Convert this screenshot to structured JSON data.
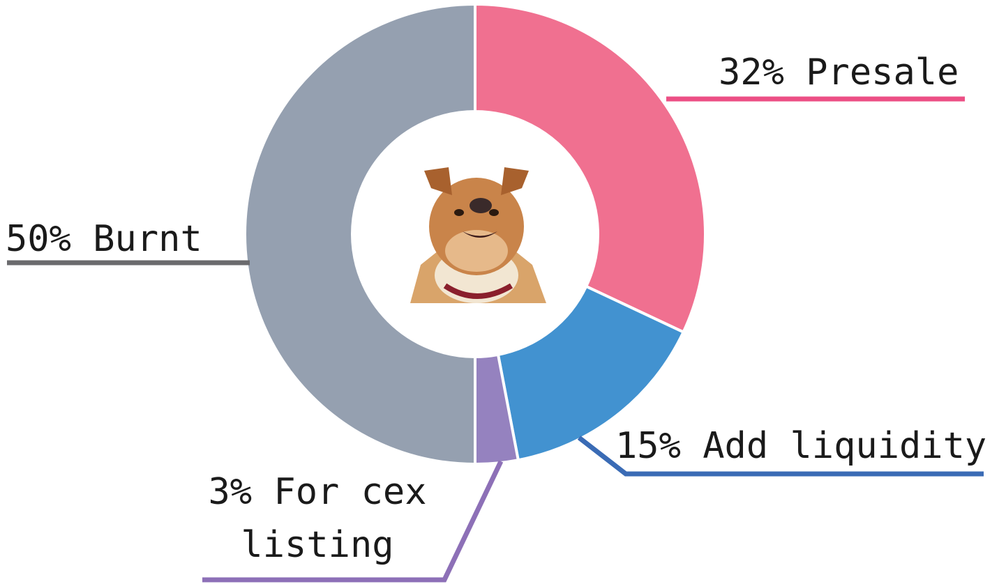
{
  "chart_data": {
    "type": "donut",
    "categories": [
      "Presale",
      "Add liquidity",
      "For cex listing",
      "Burnt"
    ],
    "values": [
      32,
      15,
      3,
      50
    ],
    "value_labels": [
      "32%",
      "15%",
      "3%",
      "50%"
    ],
    "colors": [
      "#f07090",
      "#4292d0",
      "#9582bf",
      "#95a0b0"
    ]
  }
}
